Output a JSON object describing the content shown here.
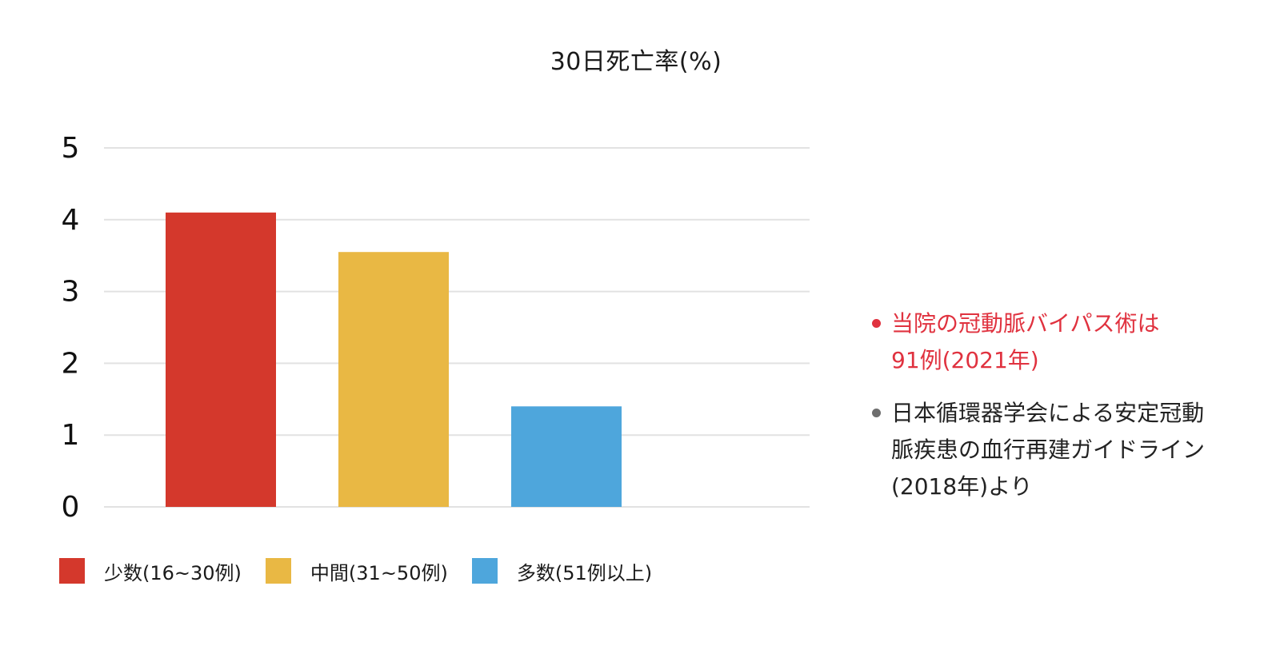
{
  "chart_data": {
    "type": "bar",
    "title": "30日死亡率(%)",
    "categories": [
      "少数(16~30例)",
      "中間(31~50例)",
      "多数(51例以上)"
    ],
    "values": [
      4.1,
      3.55,
      1.4
    ],
    "colors": [
      "#d4382c",
      "#e9b844",
      "#4ea6dc"
    ],
    "ylim": [
      0,
      5
    ],
    "yticks": [
      "0",
      "1",
      "2",
      "3",
      "4",
      "5"
    ],
    "grid": true,
    "legend_position": "bottom-left",
    "xlabel": "",
    "ylabel": ""
  },
  "legend": {
    "items": [
      {
        "label": "少数(16~30例)",
        "color": "#d4382c"
      },
      {
        "label": "中間(31~50例)",
        "color": "#e9b844"
      },
      {
        "label": "多数(51例以上)",
        "color": "#4ea6dc"
      }
    ]
  },
  "notes": [
    {
      "color": "#e0323f",
      "bullet_color": "#e0323f",
      "lines": [
        "当院の冠動脈バイパス術は",
        "91例(2021年)"
      ]
    },
    {
      "color": "#222222",
      "bullet_color": "#6e6e6e",
      "lines": [
        "日本循環器学会による安定冠動",
        "脈疾患の血行再建ガイドライン",
        "(2018年)より"
      ]
    }
  ]
}
